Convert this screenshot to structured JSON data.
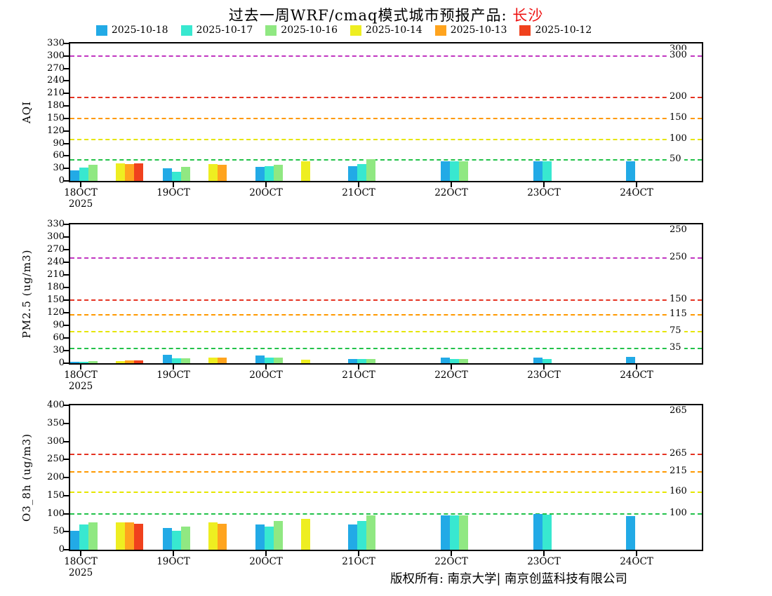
{
  "title": {
    "prefix": "过去一周WRF/cmaq模式城市预报产品: ",
    "city": "长沙"
  },
  "legend": [
    {
      "label": "2025-10-18",
      "color": "#22aae6"
    },
    {
      "label": "2025-10-17",
      "color": "#38e8d0"
    },
    {
      "label": "2025-10-16",
      "color": "#90e882"
    },
    {
      "label": "2025-10-14",
      "color": "#eeee21"
    },
    {
      "label": "2025-10-13",
      "color": "#ffa41e"
    },
    {
      "label": "2025-10-12",
      "color": "#f0411d"
    }
  ],
  "footer": {
    "text": "版权所有: 南京大学| 南京创蓝科技有限公司"
  },
  "chart_data": [
    {
      "type": "bar",
      "name": "aqi",
      "ylabel": "AQI",
      "ylim": [
        0,
        330
      ],
      "ytick_step": 30,
      "categories": [
        "18OCT",
        "19OCT",
        "20OCT",
        "21OCT",
        "22OCT",
        "23OCT",
        "24OCT"
      ],
      "first_category_year": "2025",
      "legend_position": "top",
      "grid": false,
      "series": [
        {
          "name": "2025-10-18",
          "values": [
            25,
            30,
            33,
            35,
            48,
            48,
            48
          ]
        },
        {
          "name": "2025-10-17",
          "values": [
            32,
            22,
            36,
            40,
            48,
            48,
            null
          ]
        },
        {
          "name": "2025-10-16",
          "values": [
            38,
            33,
            38,
            52,
            48,
            null,
            null
          ]
        },
        {
          "name": "2025-10-14",
          "values": [
            42,
            40,
            47,
            null,
            null,
            null,
            null
          ]
        },
        {
          "name": "2025-10-13",
          "values": [
            40,
            38,
            null,
            null,
            null,
            null,
            null
          ]
        },
        {
          "name": "2025-10-12",
          "values": [
            42,
            null,
            null,
            null,
            null,
            null,
            null
          ]
        }
      ],
      "ref_lines": [
        {
          "value": 50,
          "color": "#22c24a"
        },
        {
          "value": 100,
          "color": "#e6e600"
        },
        {
          "value": 150,
          "color": "#ff9900"
        },
        {
          "value": 200,
          "color": "#e53322"
        },
        {
          "value": 300,
          "color": "#c136c1"
        }
      ]
    },
    {
      "type": "bar",
      "name": "pm25",
      "ylabel": "PM2.5 (ug/m3)",
      "ylim": [
        0,
        330
      ],
      "ytick_step": 30,
      "categories": [
        "18OCT",
        "19OCT",
        "20OCT",
        "21OCT",
        "22OCT",
        "23OCT",
        "24OCT"
      ],
      "first_category_year": "2025",
      "legend_position": "top",
      "grid": false,
      "series": [
        {
          "name": "2025-10-18",
          "values": [
            4,
            20,
            18,
            10,
            13,
            14,
            15
          ]
        },
        {
          "name": "2025-10-17",
          "values": [
            4,
            12,
            14,
            10,
            10,
            10,
            null
          ]
        },
        {
          "name": "2025-10-16",
          "values": [
            5,
            12,
            13,
            10,
            10,
            null,
            null
          ]
        },
        {
          "name": "2025-10-14",
          "values": [
            5,
            13,
            8,
            null,
            null,
            null,
            null
          ]
        },
        {
          "name": "2025-10-13",
          "values": [
            7,
            14,
            null,
            null,
            null,
            null,
            null
          ]
        },
        {
          "name": "2025-10-12",
          "values": [
            7,
            null,
            null,
            null,
            null,
            null,
            null
          ]
        }
      ],
      "ref_lines": [
        {
          "value": 35,
          "color": "#22c24a"
        },
        {
          "value": 75,
          "color": "#e6e600"
        },
        {
          "value": 115,
          "color": "#ff9900"
        },
        {
          "value": 150,
          "color": "#e53322"
        },
        {
          "value": 250,
          "color": "#c136c1"
        }
      ]
    },
    {
      "type": "bar",
      "name": "o3-8h",
      "ylabel": "O3_8h (ug/m3)",
      "ylim": [
        0,
        400
      ],
      "ytick_step": 50,
      "categories": [
        "18OCT",
        "19OCT",
        "20OCT",
        "21OCT",
        "22OCT",
        "23OCT",
        "24OCT"
      ],
      "first_category_year": "2025",
      "legend_position": "top",
      "grid": false,
      "series": [
        {
          "name": "2025-10-18",
          "values": [
            52,
            60,
            70,
            70,
            95,
            100,
            93
          ]
        },
        {
          "name": "2025-10-17",
          "values": [
            70,
            52,
            65,
            80,
            95,
            97,
            null
          ]
        },
        {
          "name": "2025-10-16",
          "values": [
            75,
            65,
            80,
            95,
            95,
            null,
            null
          ]
        },
        {
          "name": "2025-10-14",
          "values": [
            75,
            75,
            85,
            null,
            null,
            null,
            null
          ]
        },
        {
          "name": "2025-10-13",
          "values": [
            75,
            72,
            null,
            null,
            null,
            null,
            null
          ]
        },
        {
          "name": "2025-10-12",
          "values": [
            72,
            null,
            null,
            null,
            null,
            null,
            null
          ]
        }
      ],
      "ref_lines": [
        {
          "value": 100,
          "color": "#22c24a"
        },
        {
          "value": 160,
          "color": "#e6e600"
        },
        {
          "value": 215,
          "color": "#ff9900"
        },
        {
          "value": 265,
          "color": "#e53322"
        }
      ]
    }
  ]
}
